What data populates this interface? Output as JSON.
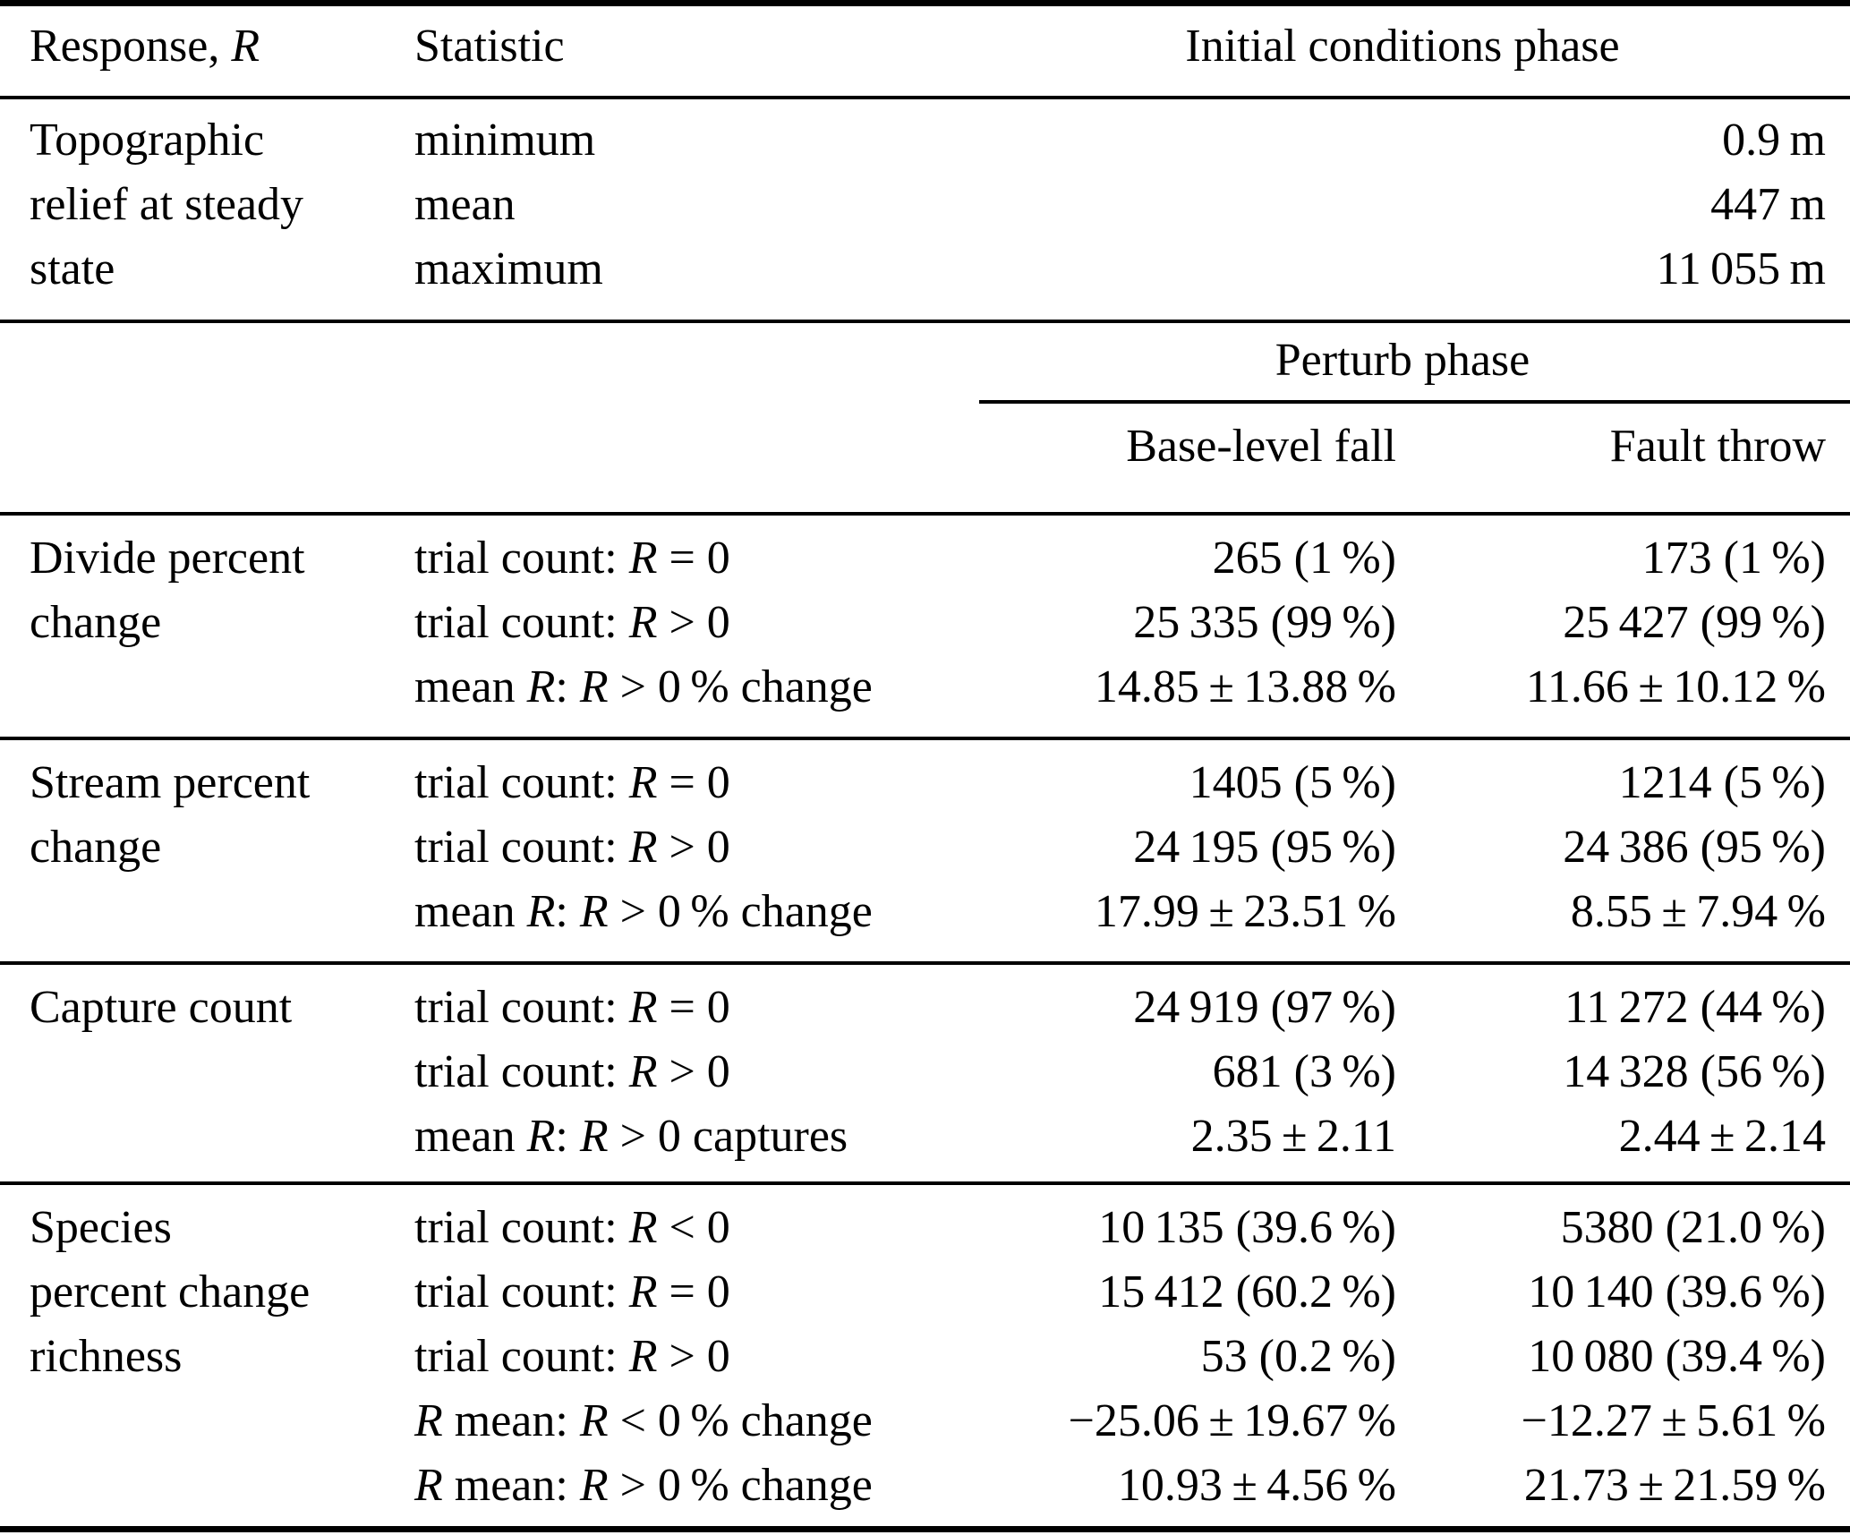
{
  "table": {
    "header": {
      "response": [
        {
          "t": "Response, "
        },
        {
          "t": "R",
          "i": true
        }
      ],
      "statistic": "Statistic",
      "initial_conditions_phase": "Initial conditions phase",
      "perturb_phase": "Perturb phase",
      "base_level_fall": "Base-level fall",
      "fault_throw": "Fault throw"
    },
    "groups": [
      {
        "response_lines": [
          "Topographic",
          "relief at steady",
          "state"
        ],
        "rows": [
          {
            "statistic": [
              {
                "t": "minimum"
              }
            ],
            "initial": "0.9 m"
          },
          {
            "statistic": [
              {
                "t": "mean"
              }
            ],
            "initial": "447 m"
          },
          {
            "statistic": [
              {
                "t": "maximum"
              }
            ],
            "initial": "11 055 m"
          }
        ]
      },
      {
        "response_lines": [
          "Divide percent",
          "change"
        ],
        "rows": [
          {
            "statistic": [
              {
                "t": "trial count: "
              },
              {
                "t": "R",
                "i": true
              },
              {
                "t": " = 0"
              }
            ],
            "base_level_fall": "265 (1 %)",
            "fault_throw": "173 (1 %)"
          },
          {
            "statistic": [
              {
                "t": "trial count: "
              },
              {
                "t": "R",
                "i": true
              },
              {
                "t": " > 0"
              }
            ],
            "base_level_fall": "25 335 (99 %)",
            "fault_throw": "25 427 (99 %)"
          },
          {
            "statistic": [
              {
                "t": "mean "
              },
              {
                "t": "R",
                "i": true
              },
              {
                "t": ": "
              },
              {
                "t": "R",
                "i": true
              },
              {
                "t": " > 0 % change"
              }
            ],
            "base_level_fall": "14.85 ± 13.88 %",
            "fault_throw": "11.66 ± 10.12 %"
          }
        ]
      },
      {
        "response_lines": [
          "Stream percent",
          "change"
        ],
        "rows": [
          {
            "statistic": [
              {
                "t": "trial count: "
              },
              {
                "t": "R",
                "i": true
              },
              {
                "t": " = 0"
              }
            ],
            "base_level_fall": "1405 (5 %)",
            "fault_throw": "1214 (5 %)"
          },
          {
            "statistic": [
              {
                "t": "trial count: "
              },
              {
                "t": "R",
                "i": true
              },
              {
                "t": " > 0"
              }
            ],
            "base_level_fall": "24 195 (95 %)",
            "fault_throw": "24 386 (95 %)"
          },
          {
            "statistic": [
              {
                "t": "mean "
              },
              {
                "t": "R",
                "i": true
              },
              {
                "t": ": "
              },
              {
                "t": "R",
                "i": true
              },
              {
                "t": " > 0 % change"
              }
            ],
            "base_level_fall": "17.99 ± 23.51 %",
            "fault_throw": "8.55 ± 7.94 %"
          }
        ]
      },
      {
        "response_lines": [
          "Capture count"
        ],
        "rows": [
          {
            "statistic": [
              {
                "t": "trial count: "
              },
              {
                "t": "R",
                "i": true
              },
              {
                "t": " = 0"
              }
            ],
            "base_level_fall": "24 919 (97 %)",
            "fault_throw": "11 272 (44 %)"
          },
          {
            "statistic": [
              {
                "t": "trial count: "
              },
              {
                "t": "R",
                "i": true
              },
              {
                "t": " > 0"
              }
            ],
            "base_level_fall": "681 (3 %)",
            "fault_throw": "14 328 (56 %)"
          },
          {
            "statistic": [
              {
                "t": "mean "
              },
              {
                "t": "R",
                "i": true
              },
              {
                "t": ": "
              },
              {
                "t": "R",
                "i": true
              },
              {
                "t": " > 0 captures"
              }
            ],
            "base_level_fall": "2.35 ± 2.11",
            "fault_throw": "2.44 ± 2.14"
          }
        ]
      },
      {
        "response_lines": [
          "Species",
          "percent change",
          "richness"
        ],
        "rows": [
          {
            "statistic": [
              {
                "t": "trial count: "
              },
              {
                "t": "R",
                "i": true
              },
              {
                "t": " < 0"
              }
            ],
            "base_level_fall": "10 135 (39.6 %)",
            "fault_throw": "5380 (21.0 %)"
          },
          {
            "statistic": [
              {
                "t": "trial count: "
              },
              {
                "t": "R",
                "i": true
              },
              {
                "t": " = 0"
              }
            ],
            "base_level_fall": "15 412 (60.2 %)",
            "fault_throw": "10 140 (39.6 %)"
          },
          {
            "statistic": [
              {
                "t": "trial count: "
              },
              {
                "t": "R",
                "i": true
              },
              {
                "t": " > 0"
              }
            ],
            "base_level_fall": "53 (0.2 %)",
            "fault_throw": "10 080 (39.4 %)"
          },
          {
            "statistic": [
              {
                "t": "R",
                "i": true
              },
              {
                "t": " mean: "
              },
              {
                "t": "R",
                "i": true
              },
              {
                "t": " < 0 % change"
              }
            ],
            "base_level_fall": "−25.06 ± 19.67 %",
            "fault_throw": "−12.27 ± 5.61 %"
          },
          {
            "statistic": [
              {
                "t": "R",
                "i": true
              },
              {
                "t": " mean: "
              },
              {
                "t": "R",
                "i": true
              },
              {
                "t": " > 0 % change"
              }
            ],
            "base_level_fall": "10.93 ± 4.56 %",
            "fault_throw": "21.73 ± 21.59 %"
          }
        ]
      }
    ]
  }
}
